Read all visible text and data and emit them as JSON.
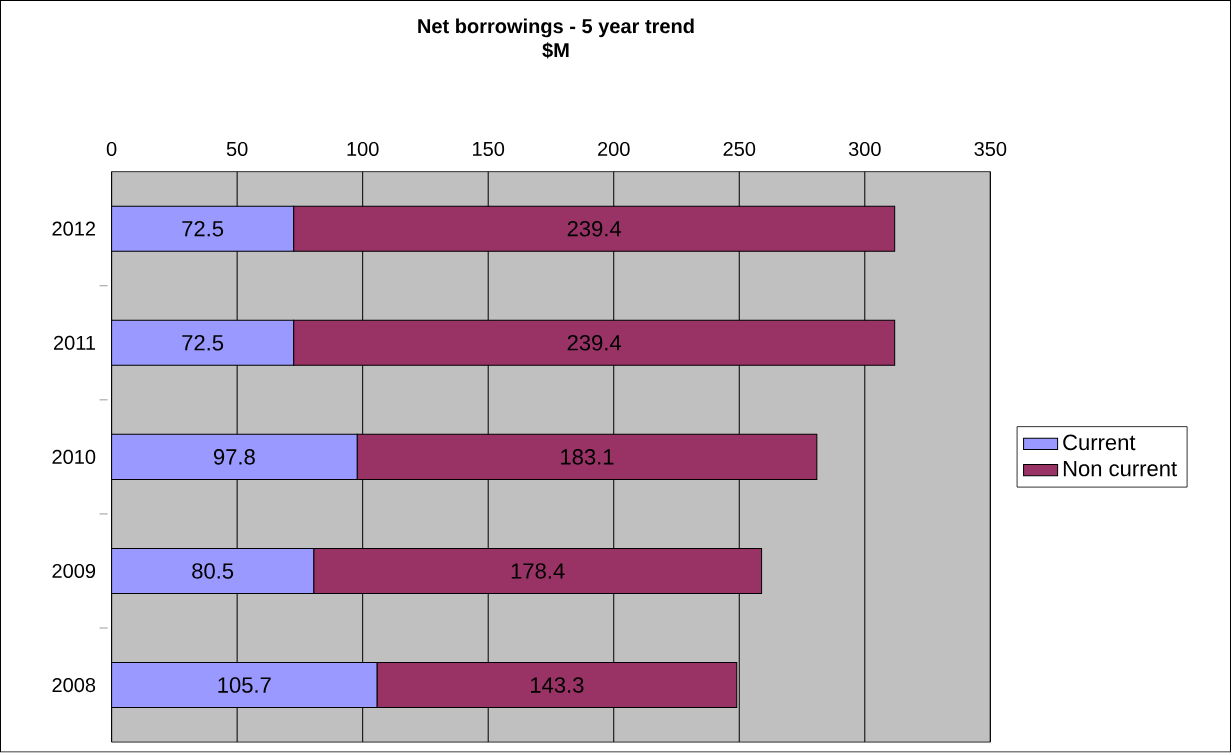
{
  "chart_data": {
    "type": "bar",
    "orientation": "horizontal",
    "stacked": true,
    "title": "Net borrowings - 5 year trend",
    "subtitle": "$M",
    "categories": [
      "2012",
      "2011",
      "2010",
      "2009",
      "2008"
    ],
    "series": [
      {
        "name": "Current",
        "color": "#9999ff",
        "values": [
          72.5,
          72.5,
          97.8,
          80.5,
          105.7
        ]
      },
      {
        "name": "Non current",
        "color": "#993366",
        "values": [
          239.4,
          239.4,
          183.1,
          178.4,
          143.3
        ]
      }
    ],
    "xlim": [
      0,
      350
    ],
    "xticks": [
      0,
      50,
      100,
      150,
      200,
      250,
      300,
      350
    ],
    "grid": "x",
    "legend": "right",
    "data_labels": true
  }
}
